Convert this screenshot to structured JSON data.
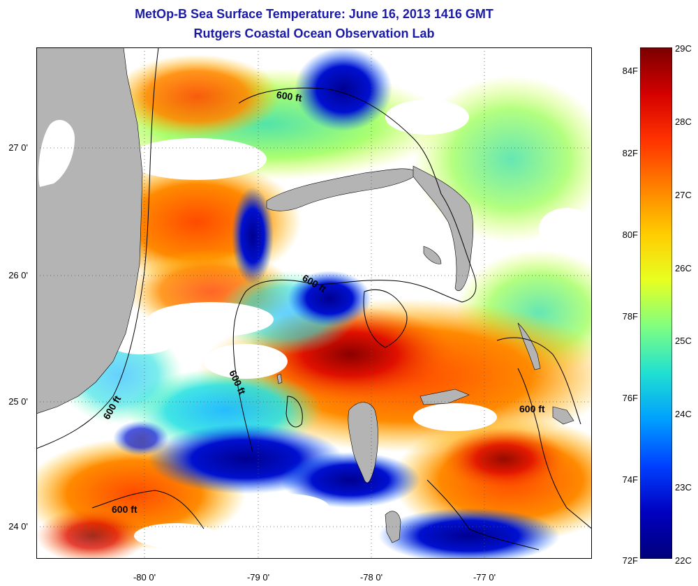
{
  "title": {
    "line1": "MetOp-B Sea Surface Temperature:  June 16, 2013 1416 GMT",
    "line2": "Rutgers Coastal Ocean Observation Lab"
  },
  "axes": {
    "y_ticks": [
      "27 0'",
      "26 0'",
      "25 0'",
      "24 0'"
    ],
    "x_ticks": [
      "-80 0'",
      "-79 0'",
      "-78 0'",
      "-77 0'"
    ]
  },
  "contour_label": "600 ft",
  "colorbar": {
    "fahrenheit_labels": [
      "84F",
      "82F",
      "80F",
      "78F",
      "76F",
      "74F",
      "72F"
    ],
    "celsius_labels": [
      "29C",
      "28C",
      "27C",
      "26C",
      "25C",
      "24C",
      "23C",
      "22C"
    ],
    "colors": [
      "#7a0000",
      "#d40000",
      "#ff3300",
      "#ff8000",
      "#ffcc00",
      "#e8ff20",
      "#80ff80",
      "#20e0d0",
      "#00a0ff",
      "#0040ff",
      "#0000c0",
      "#00007a"
    ]
  },
  "colors": {
    "land": "#b4b4b4",
    "cloud": "#ffffff",
    "title": "#1a1aa6"
  }
}
